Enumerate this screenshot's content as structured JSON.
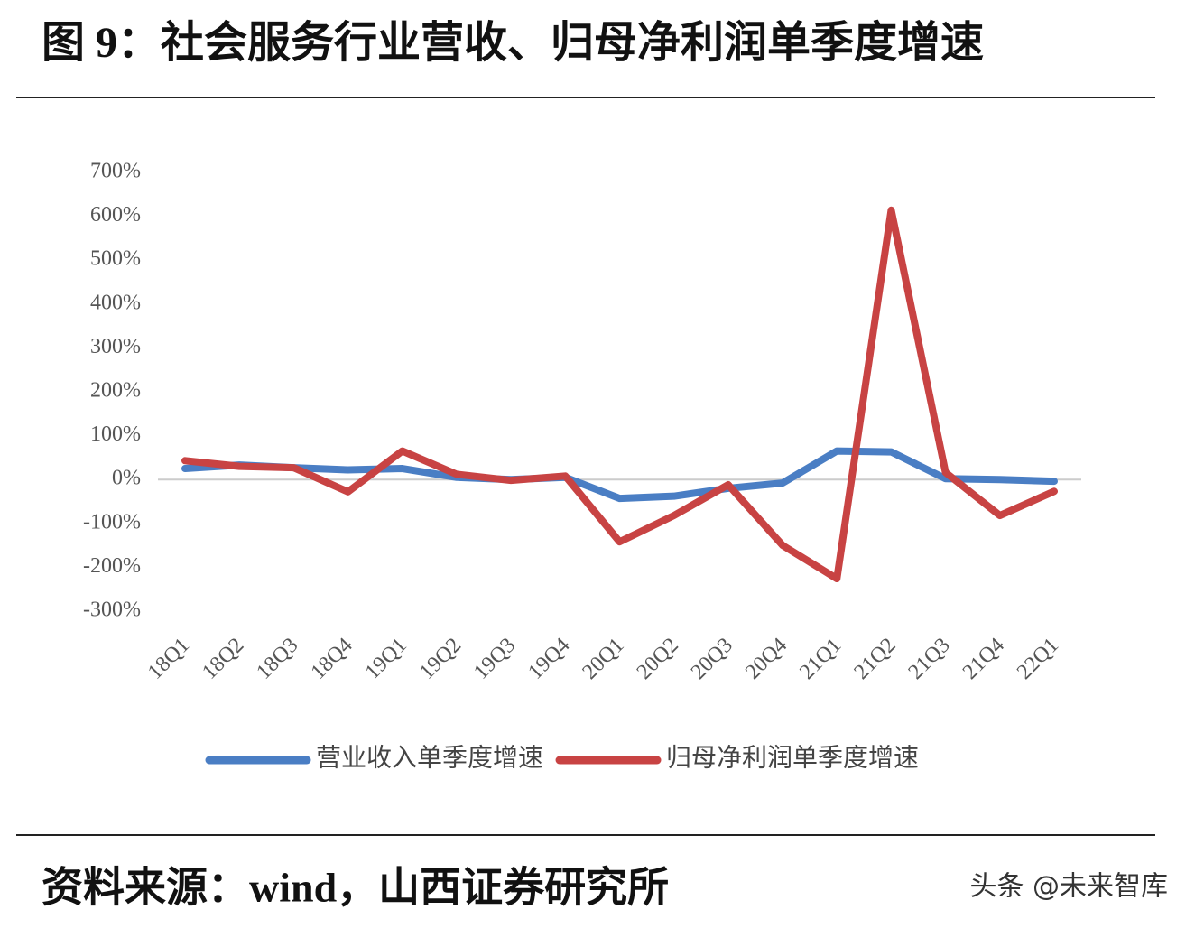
{
  "title": "图 9：社会服务行业营收、归母净利润单季度增速",
  "source": "资料来源：wind，山西证券研究所",
  "watermark": "头条 @未来智库",
  "chart_data": {
    "type": "line",
    "categories": [
      "18Q1",
      "18Q2",
      "18Q3",
      "18Q4",
      "19Q1",
      "19Q2",
      "19Q3",
      "19Q4",
      "20Q1",
      "20Q2",
      "20Q3",
      "20Q4",
      "21Q1",
      "21Q2",
      "21Q3",
      "21Q4",
      "22Q1"
    ],
    "series": [
      {
        "name": "营业收入单季度增速",
        "color": "#4a7ec4",
        "values": [
          25,
          33,
          27,
          22,
          25,
          5,
          0,
          5,
          -43,
          -38,
          -20,
          -8,
          65,
          63,
          2,
          0,
          -4
        ]
      },
      {
        "name": "归母净利润单季度增速",
        "color": "#c84343",
        "values": [
          43,
          30,
          27,
          -28,
          65,
          12,
          -2,
          8,
          -142,
          -82,
          -12,
          -150,
          -226,
          614,
          16,
          -82,
          -27
        ]
      }
    ],
    "ylim": [
      -300,
      700
    ],
    "yticks": [
      {
        "value": -300,
        "label": "-300%"
      },
      {
        "value": -200,
        "label": "-200%"
      },
      {
        "value": -100,
        "label": "-100%"
      },
      {
        "value": 0,
        "label": "0%"
      },
      {
        "value": 100,
        "label": "100%"
      },
      {
        "value": 200,
        "label": "200%"
      },
      {
        "value": 300,
        "label": "300%"
      },
      {
        "value": 400,
        "label": "400%"
      },
      {
        "value": 500,
        "label": "500%"
      },
      {
        "value": 600,
        "label": "600%"
      },
      {
        "value": 700,
        "label": "700%"
      }
    ],
    "grid": false,
    "legend": "bottom"
  }
}
